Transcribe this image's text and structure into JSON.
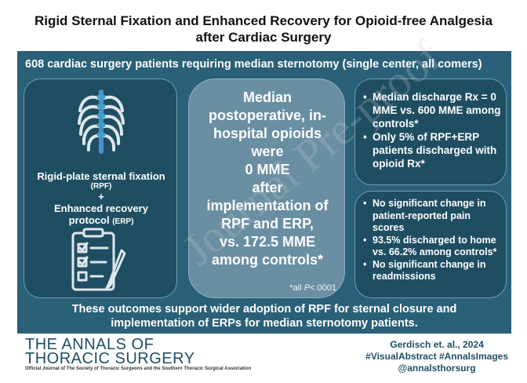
{
  "title_line1": "Rigid Sternal Fixation and Enhanced Recovery for Opioid-free Analgesia",
  "title_line2": "after Cardiac Surgery",
  "banner": "608 cardiac surgery patients requiring median sternotomy (single center, all comers)",
  "left": {
    "line1": "Rigid-plate sternal fixation",
    "abbr1": "(RPF)",
    "plus": "+",
    "line2": "Enhanced recovery",
    "line3": "protocol",
    "abbr2": "(ERP)",
    "icons": [
      "ribcage-icon",
      "checklist-icon"
    ]
  },
  "center": {
    "lines": [
      "Median",
      "postoperative, in-",
      "hospital opioids",
      "were",
      "0 MME",
      "after",
      "implementation of",
      "RPF and ERP,",
      "vs. 172.5 MME",
      "among controls*"
    ],
    "pval_prefix": "*all ",
    "pval_italic": "P",
    "pval_suffix": "<.0001"
  },
  "top_right": [
    "Median discharge Rx = 0 MME vs. 600 MME among controls*",
    "Only 5% of RPF+ERP patients discharged with opioid Rx*"
  ],
  "bottom_right": [
    "No significant change in patient-reported pain scores",
    "93.5% discharged to home vs. 66.2% among controls*",
    "No significant change in readmissions"
  ],
  "footer_line1": "These outcomes support wider adoption of RPF for sternal closure and",
  "footer_line2": "implementation of ERPs for median sternotomy patients.",
  "journal_line1": "THE ANNALS OF",
  "journal_line2": "THORACIC SURGERY",
  "journal_sub": "Official Journal of The Society of Thoracic Surgeons and the Southern Thoracic Surgical Association",
  "citation": "Gerdisch et. al., 2024",
  "hashtags": "#VisualAbstract #AnnalsImages",
  "handle": "@annalsthorsurg",
  "watermark": "Journal Pre-proof",
  "colors": {
    "panel": "#2a6078",
    "box": "#1f4e63",
    "center_box": "#6a8fa3",
    "accent": "#3fa0d0"
  }
}
